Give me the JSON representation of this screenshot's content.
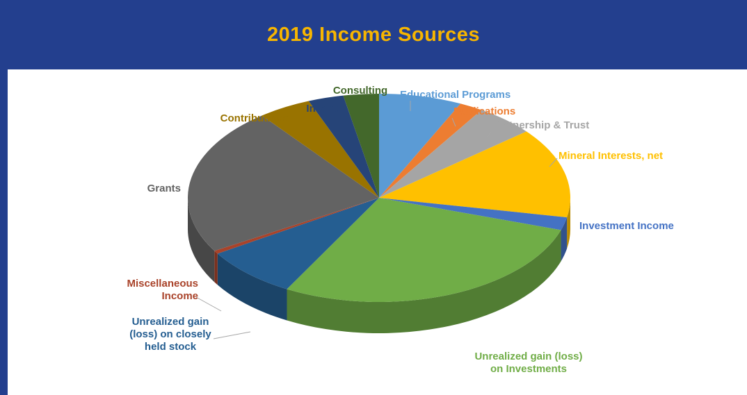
{
  "chart_data": {
    "type": "pie3d",
    "title": "2019 Income Sources",
    "categories": [
      "Educational Programs",
      "Publications",
      "Partnership & Trust",
      "Mineral Interests, net",
      "Investment Income",
      "Unrealized gain (loss) on Investments",
      "Unrealized gain (loss) on closely held stock",
      "Miscellaneous Income",
      "Grants",
      "Contributions",
      "In-kind",
      "Consulting"
    ],
    "values": [
      7,
      2,
      5,
      14,
      2,
      28,
      8,
      0.5,
      23,
      4.5,
      3,
      3
    ],
    "colors": [
      "#5b9bd5",
      "#ed7d31",
      "#a5a5a5",
      "#ffc000",
      "#4472c4",
      "#70ad47",
      "#255e91",
      "#a9432a",
      "#636363",
      "#997300",
      "#264478",
      "#43682b"
    ]
  }
}
